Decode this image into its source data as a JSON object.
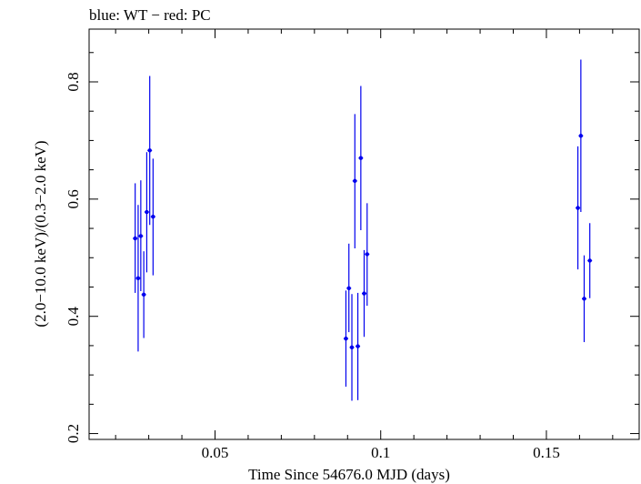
{
  "chart_data": {
    "type": "scatter",
    "title": "blue: WT − red: PC",
    "xlabel": "Time Since 54676.0 MJD (days)",
    "ylabel": "(2.0−10.0 keV)/(0.3−2.0 keV)",
    "xlim": [
      0.012,
      0.178
    ],
    "ylim": [
      0.19,
      0.89
    ],
    "x_ticks": [
      0.05,
      0.1,
      0.15
    ],
    "x_tick_labels": [
      "0.05",
      "0.1",
      "0.15"
    ],
    "y_ticks": [
      0.2,
      0.4,
      0.6,
      0.8
    ],
    "y_tick_labels": [
      "0.2",
      "0.4",
      "0.6",
      "0.8"
    ],
    "series": [
      {
        "name": "WT",
        "color": "#0000ee",
        "points": [
          {
            "x": 0.0259,
            "y": 0.533,
            "ylo": 0.44,
            "yhi": 0.627
          },
          {
            "x": 0.0268,
            "y": 0.465,
            "ylo": 0.34,
            "yhi": 0.59
          },
          {
            "x": 0.0276,
            "y": 0.537,
            "ylo": 0.443,
            "yhi": 0.632
          },
          {
            "x": 0.0285,
            "y": 0.437,
            "ylo": 0.363,
            "yhi": 0.511
          },
          {
            "x": 0.0294,
            "y": 0.578,
            "ylo": 0.475,
            "yhi": 0.68
          },
          {
            "x": 0.0303,
            "y": 0.683,
            "ylo": 0.556,
            "yhi": 0.81
          },
          {
            "x": 0.0313,
            "y": 0.57,
            "ylo": 0.47,
            "yhi": 0.669
          },
          {
            "x": 0.0895,
            "y": 0.362,
            "ylo": 0.28,
            "yhi": 0.444
          },
          {
            "x": 0.0904,
            "y": 0.448,
            "ylo": 0.373,
            "yhi": 0.524
          },
          {
            "x": 0.0913,
            "y": 0.347,
            "ylo": 0.256,
            "yhi": 0.438
          },
          {
            "x": 0.0922,
            "y": 0.631,
            "ylo": 0.516,
            "yhi": 0.745
          },
          {
            "x": 0.0931,
            "y": 0.349,
            "ylo": 0.257,
            "yhi": 0.44
          },
          {
            "x": 0.094,
            "y": 0.67,
            "ylo": 0.547,
            "yhi": 0.793
          },
          {
            "x": 0.095,
            "y": 0.439,
            "ylo": 0.365,
            "yhi": 0.513
          },
          {
            "x": 0.0959,
            "y": 0.506,
            "ylo": 0.418,
            "yhi": 0.593
          },
          {
            "x": 0.1595,
            "y": 0.585,
            "ylo": 0.48,
            "yhi": 0.69
          },
          {
            "x": 0.1604,
            "y": 0.708,
            "ylo": 0.578,
            "yhi": 0.838
          },
          {
            "x": 0.1614,
            "y": 0.43,
            "ylo": 0.356,
            "yhi": 0.504
          },
          {
            "x": 0.1631,
            "y": 0.495,
            "ylo": 0.431,
            "yhi": 0.559
          }
        ]
      }
    ]
  }
}
